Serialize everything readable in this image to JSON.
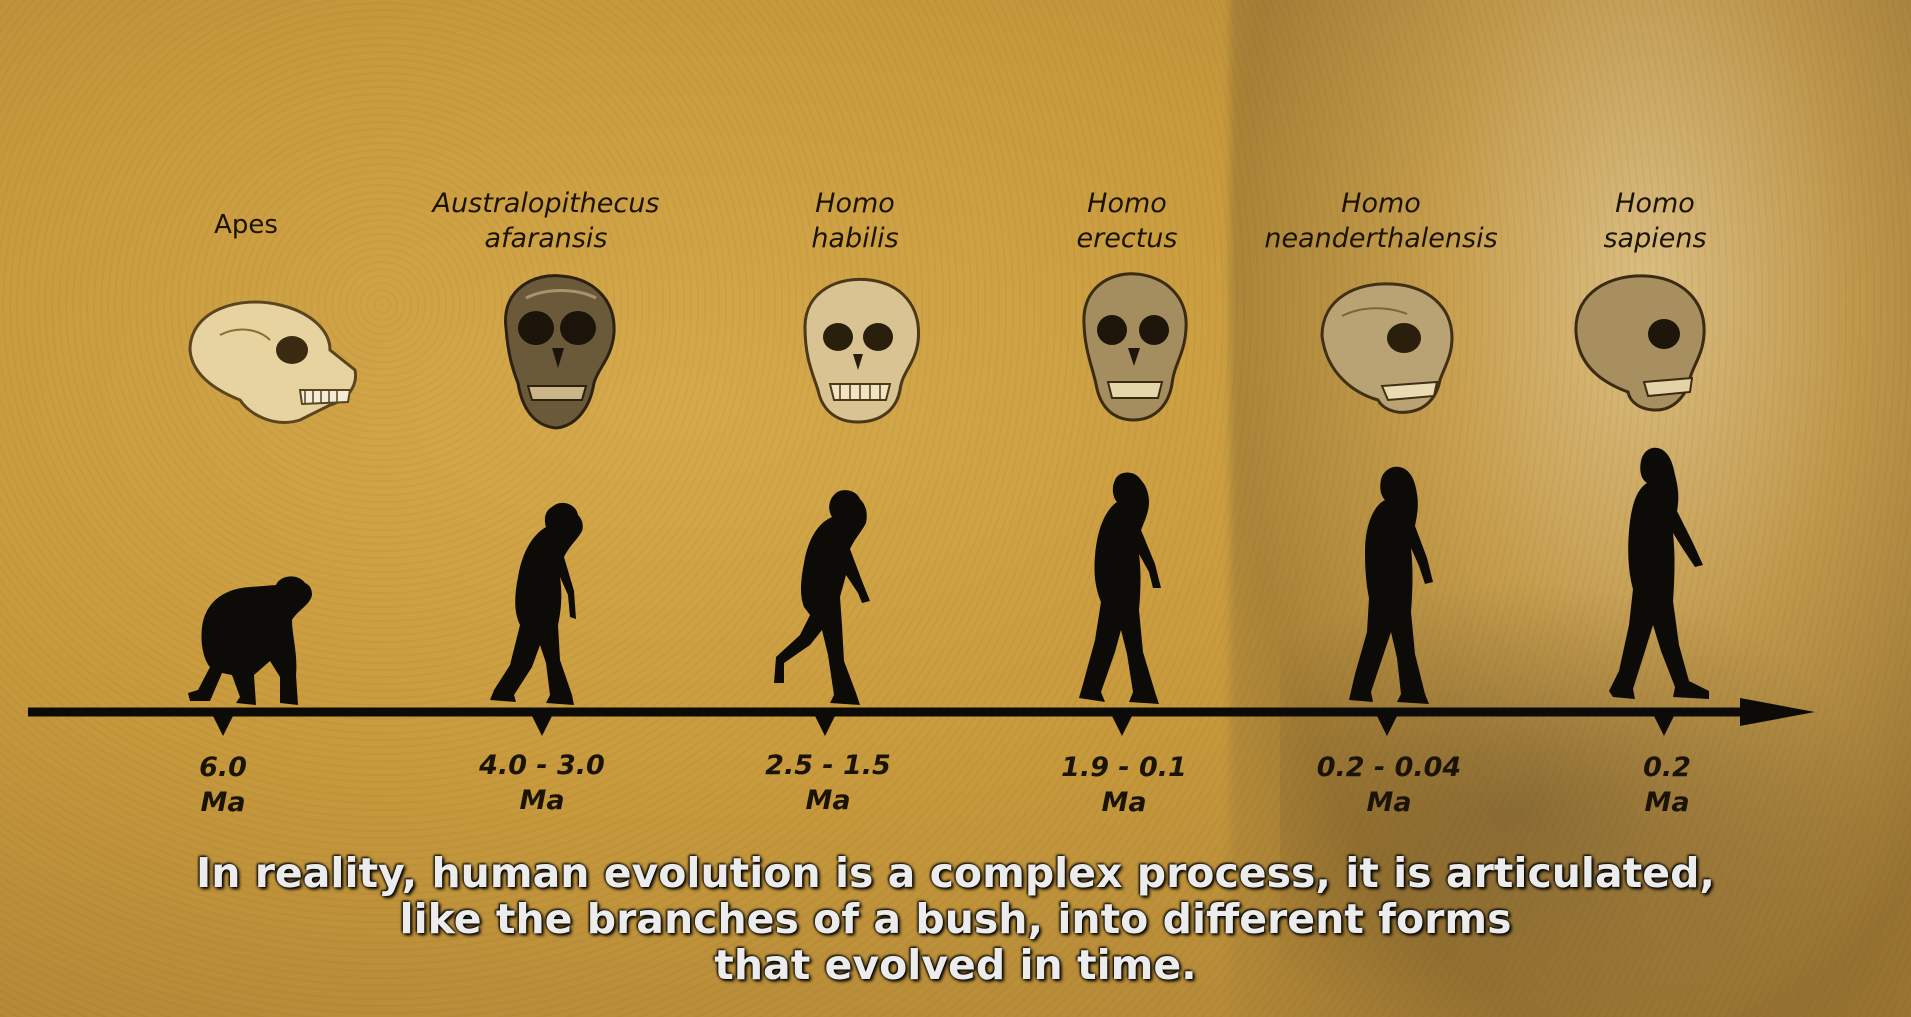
{
  "species": [
    {
      "name_line1": "Apes",
      "name_line2": "",
      "date_line1": "6.0",
      "date_line2": "Ma"
    },
    {
      "name_line1": "Australopithecus",
      "name_line2": "afaransis",
      "date_line1": "4.0 - 3.0",
      "date_line2": "Ma"
    },
    {
      "name_line1": "Homo",
      "name_line2": "habilis",
      "date_line1": "2.5 - 1.5",
      "date_line2": "Ma"
    },
    {
      "name_line1": "Homo",
      "name_line2": "erectus",
      "date_line1": "1.9 - 0.1",
      "date_line2": "Ma"
    },
    {
      "name_line1": "Homo",
      "name_line2": "neanderthalensis",
      "date_line1": "0.2 - 0.04",
      "date_line2": "Ma"
    },
    {
      "name_line1": "Homo",
      "name_line2": "sapiens",
      "date_line1": "0.2",
      "date_line2": "Ma"
    }
  ],
  "caption": {
    "line1": "In reality, human evolution is a complex process, it is articulated,",
    "line2": "like the branches of a bush, into different forms",
    "line3": "that evolved in time."
  },
  "colors": {
    "background": "#c89a3d",
    "ink": "#111111",
    "caption_text": "#ececec"
  }
}
